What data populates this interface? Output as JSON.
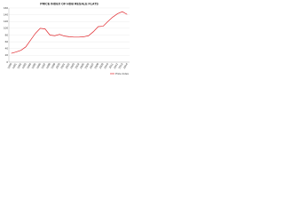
{
  "chart_data": {
    "type": "line",
    "title": "PRICE INDEX OF HDB RESALE FLATS",
    "categories": [
      "1990",
      "1991",
      "1992",
      "1993",
      "1994",
      "1995",
      "1996",
      "1997",
      "1998",
      "1999",
      "2000",
      "2001",
      "2002",
      "2003",
      "2004",
      "2005",
      "2006",
      "2007",
      "2008",
      "2009",
      "2010",
      "2011",
      "2012",
      "2013",
      "2014"
    ],
    "series": [
      {
        "name": "Price Index",
        "color": "#e0262b",
        "values": [
          26,
          30,
          35,
          45,
          65,
          85,
          100,
          98,
          80,
          78,
          82,
          77,
          75,
          74,
          74,
          75,
          78,
          90,
          105,
          106,
          120,
          133,
          143,
          149,
          141
        ]
      }
    ],
    "ylim": [
      0,
      160
    ],
    "yticks": [
      0,
      20,
      40,
      60,
      80,
      100,
      120,
      140,
      160
    ],
    "grid": true
  }
}
